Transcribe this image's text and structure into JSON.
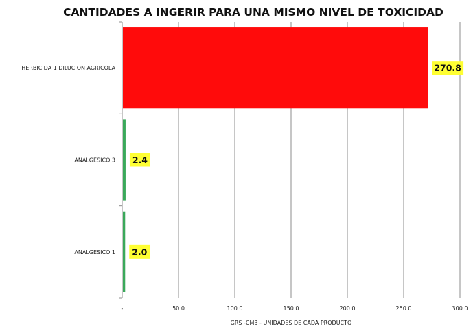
{
  "chart_data": {
    "type": "bar",
    "orientation": "horizontal",
    "title": "CANTIDADES A INGERIR PARA UNA  MISMO NIVEL DE TOXICIDAD",
    "xlabel": "GRS -CM3 - UNIDADES DE CADA PRODUCTO",
    "ylabel": "",
    "xlim": [
      0,
      300
    ],
    "x_ticks": [
      0,
      50,
      100,
      150,
      200,
      250,
      300
    ],
    "x_tick_labels": [
      "-",
      "50.0",
      "100.0",
      "150.0",
      "200.0",
      "250.0",
      "300.0"
    ],
    "grid": "vertical",
    "categories": [
      "HERBICIDA 1 DILUCION AGRICOLA",
      "ANALGESICO 3",
      "ANALGESICO 1"
    ],
    "values": [
      270.8,
      2.4,
      2.0
    ],
    "data_labels": [
      "270.8",
      "2.4",
      "2.0"
    ],
    "bar_colors": [
      "#ff0b0b",
      "#3aa85a",
      "#3aa85a"
    ],
    "data_label_background": "#ffff33",
    "legend": "none"
  }
}
